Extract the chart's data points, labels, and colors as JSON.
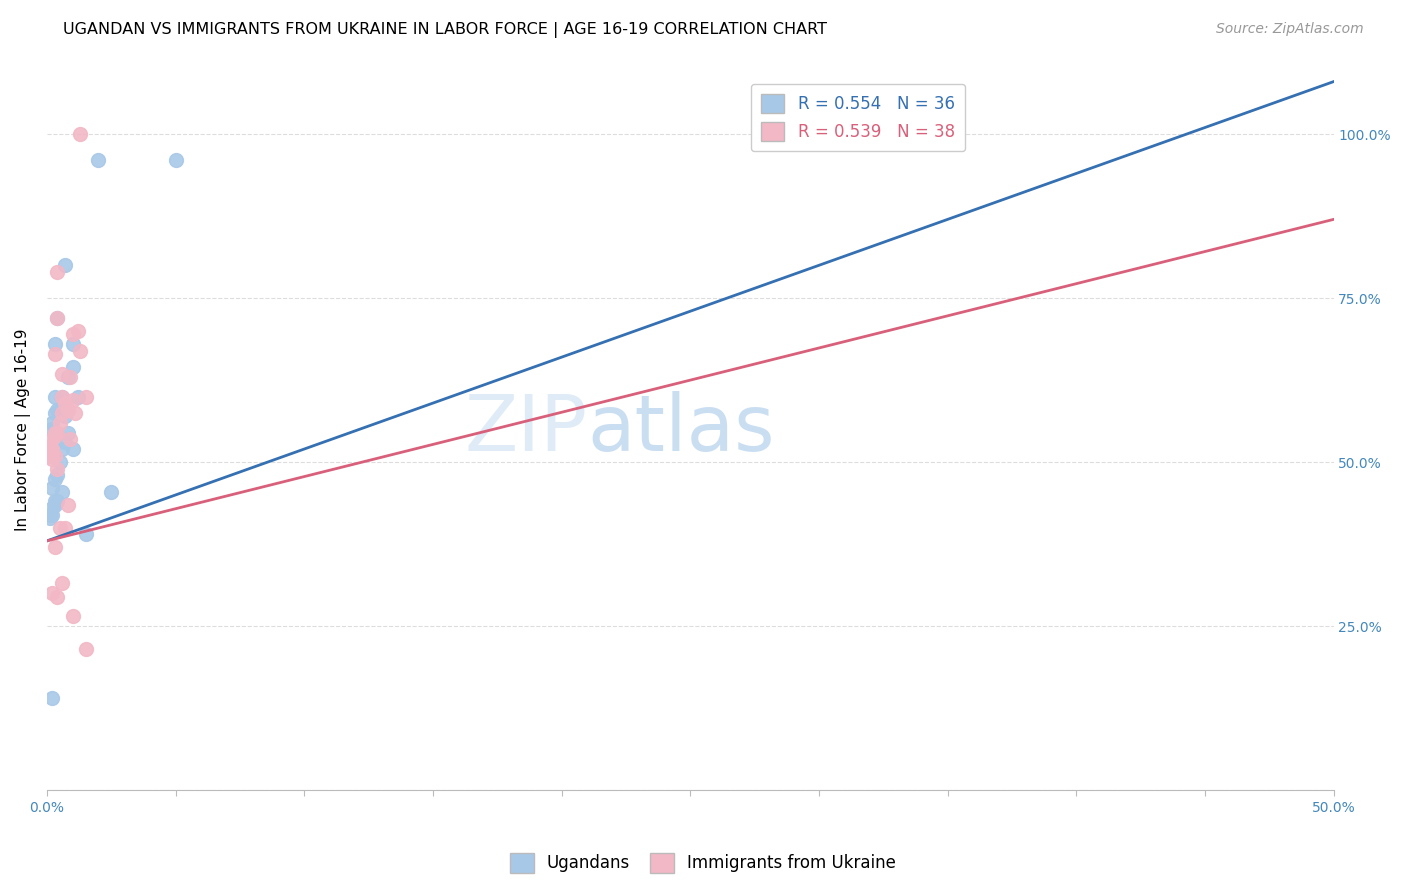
{
  "title": "UGANDAN VS IMMIGRANTS FROM UKRAINE IN LABOR FORCE | AGE 16-19 CORRELATION CHART",
  "source": "Source: ZipAtlas.com",
  "ylabel": "In Labor Force | Age 16-19",
  "xmin": 0.0,
  "xmax": 0.5,
  "ymin": 0.0,
  "ymax": 1.1,
  "xticks": [
    0.0,
    0.05,
    0.1,
    0.15,
    0.2,
    0.25,
    0.3,
    0.35,
    0.4,
    0.45,
    0.5
  ],
  "xticklabels_show": [
    "0.0%",
    "50.0%"
  ],
  "yticks_right": [
    0.25,
    0.5,
    0.75,
    1.0
  ],
  "ytick_labels_right": [
    "25.0%",
    "50.0%",
    "75.0%",
    "100.0%"
  ],
  "blue_R": "0.554",
  "blue_N": "36",
  "pink_R": "0.539",
  "pink_N": "38",
  "blue_color": "#A8C8E8",
  "pink_color": "#F2B8C6",
  "blue_line_color": "#3570B2",
  "pink_line_color": "#D9607A",
  "legend_label_blue": "Ugandans",
  "legend_label_pink": "Immigrants from Ukraine",
  "blue_scatter_x": [
    0.02,
    0.05,
    0.004,
    0.007,
    0.003,
    0.005,
    0.002,
    0.003,
    0.002,
    0.004,
    0.006,
    0.003,
    0.008,
    0.01,
    0.012,
    0.004,
    0.006,
    0.007,
    0.002,
    0.003,
    0.005,
    0.007,
    0.008,
    0.01,
    0.001,
    0.002,
    0.003,
    0.004,
    0.006,
    0.025,
    0.001,
    0.002,
    0.003,
    0.01,
    0.015,
    0.002
  ],
  "blue_scatter_y": [
    0.96,
    0.96,
    0.72,
    0.8,
    0.6,
    0.58,
    0.56,
    0.575,
    0.55,
    0.58,
    0.6,
    0.68,
    0.63,
    0.645,
    0.6,
    0.48,
    0.52,
    0.57,
    0.46,
    0.475,
    0.5,
    0.53,
    0.545,
    0.68,
    0.42,
    0.42,
    0.435,
    0.44,
    0.455,
    0.455,
    0.415,
    0.43,
    0.44,
    0.52,
    0.39,
    0.14
  ],
  "pink_scatter_x": [
    0.004,
    0.006,
    0.008,
    0.01,
    0.011,
    0.013,
    0.015,
    0.003,
    0.004,
    0.005,
    0.006,
    0.007,
    0.009,
    0.001,
    0.002,
    0.002,
    0.003,
    0.004,
    0.01,
    0.012,
    0.003,
    0.005,
    0.007,
    0.002,
    0.004,
    0.006,
    0.008,
    0.01,
    0.015,
    0.001,
    0.002,
    0.003,
    0.006,
    0.009,
    0.013,
    0.002,
    0.003,
    0.004
  ],
  "pink_scatter_y": [
    0.79,
    0.6,
    0.58,
    0.595,
    0.575,
    0.67,
    0.6,
    0.54,
    0.545,
    0.56,
    0.575,
    0.59,
    0.63,
    0.51,
    0.52,
    0.515,
    0.665,
    0.72,
    0.695,
    0.7,
    0.37,
    0.4,
    0.4,
    0.3,
    0.295,
    0.315,
    0.435,
    0.265,
    0.215,
    0.525,
    0.535,
    0.545,
    0.635,
    0.535,
    1.0,
    0.505,
    0.51,
    0.49
  ],
  "blue_trend_x": [
    0.0,
    0.5
  ],
  "blue_trend_y": [
    0.38,
    1.08
  ],
  "pink_trend_x": [
    0.0,
    0.5
  ],
  "pink_trend_y": [
    0.38,
    0.87
  ],
  "grid_color": "#DDDDDD",
  "title_fontsize": 11.5,
  "axis_label_fontsize": 11,
  "tick_fontsize": 10,
  "legend_fontsize": 12,
  "source_fontsize": 10
}
